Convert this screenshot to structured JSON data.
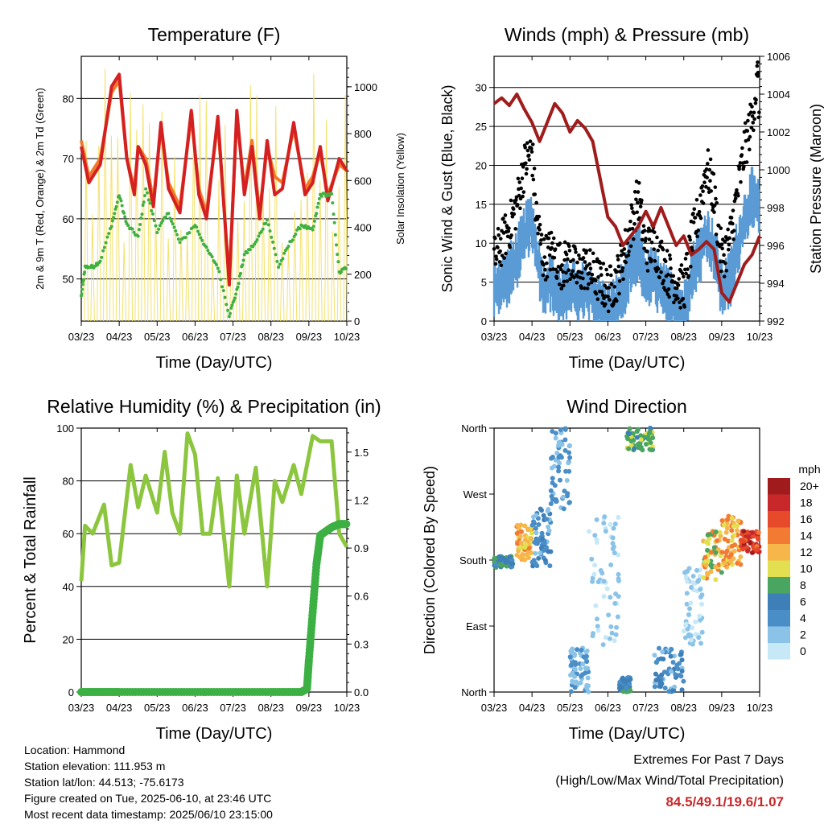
{
  "chart_data": [
    {
      "type": "line",
      "title": "Temperature (F)",
      "xlabel": "Time (Day/UTC)",
      "ylabel": "2m & 9m T (Red, Orange) & 2m Td (Green)",
      "y2label": "Solar Insolation (Yellow)",
      "x_ticks": [
        "03/23",
        "04/23",
        "05/23",
        "06/23",
        "07/23",
        "08/23",
        "09/23",
        "10/23"
      ],
      "y_ticks": [
        50,
        60,
        70,
        80
      ],
      "y2_ticks": [
        0,
        200,
        400,
        600,
        800,
        1000
      ],
      "ylim": [
        43,
        87
      ],
      "y2lim": [
        0,
        1130
      ],
      "grid": true,
      "series": [
        {
          "color": "#d42020",
          "x": [
            0,
            0.2,
            0.5,
            0.8,
            1.0,
            1.2,
            1.4,
            1.5,
            1.7,
            1.9,
            2.1,
            2.3,
            2.6,
            2.9,
            3.1,
            3.3,
            3.6,
            3.9,
            4.1,
            4.3,
            4.5,
            4.7,
            4.9,
            5.1,
            5.3,
            5.6,
            5.9,
            6.1,
            6.3,
            6.5,
            6.8,
            7.0
          ],
          "values": [
            72,
            66,
            69,
            82,
            84,
            70,
            64,
            72,
            69,
            62,
            76,
            65,
            61,
            78,
            64,
            60,
            77,
            49,
            78,
            64,
            72,
            60,
            73,
            64,
            65,
            76,
            64,
            66,
            72,
            63,
            70,
            68
          ]
        },
        {
          "color": "#f07a2a",
          "x": [
            0,
            0.2,
            0.5,
            0.8,
            1.0,
            1.2,
            1.4,
            1.5,
            1.7,
            1.9,
            2.1,
            2.3,
            2.6,
            2.9,
            3.1,
            3.3,
            3.6,
            3.9,
            4.1,
            4.3,
            4.5,
            4.7,
            4.9,
            5.1,
            5.3,
            5.6,
            5.9,
            6.1,
            6.3,
            6.5,
            6.8,
            7.0
          ],
          "values": [
            73,
            67,
            70,
            81,
            83,
            70,
            65,
            72,
            70,
            63,
            75,
            66,
            62,
            77,
            65,
            61,
            76,
            50,
            77,
            65,
            73,
            61,
            72,
            67,
            66,
            75,
            65,
            67,
            71,
            64,
            69,
            68
          ]
        },
        {
          "color": "#40b040",
          "x": [
            0,
            0.1,
            0.3,
            0.5,
            0.8,
            1.0,
            1.2,
            1.5,
            1.7,
            2.0,
            2.3,
            2.6,
            3.0,
            3.3,
            3.6,
            3.9,
            4.1,
            4.3,
            4.6,
            4.9,
            5.2,
            5.5,
            5.8,
            6.1,
            6.3,
            6.6,
            6.8,
            7.0
          ],
          "values": [
            47,
            52,
            52,
            53,
            59,
            64,
            59,
            57,
            65,
            58,
            61,
            56,
            59,
            55,
            52,
            44,
            48,
            54,
            56,
            60,
            52,
            56,
            59,
            58,
            64,
            64,
            51,
            52
          ]
        },
        {
          "color": "#f5e06a",
          "x": [],
          "values": []
        }
      ]
    },
    {
      "type": "scatter",
      "title": "Winds (mph) & Pressure (mb)",
      "xlabel": "Time (Day/UTC)",
      "ylabel": "Sonic Wind & Gust (Blue, Black)",
      "y2label": "Station Pressure (Maroon)",
      "x_ticks": [
        "03/23",
        "04/23",
        "05/23",
        "06/23",
        "07/23",
        "08/23",
        "09/23",
        "10/23"
      ],
      "y_ticks": [
        0,
        5,
        10,
        15,
        20,
        25,
        30
      ],
      "y2_ticks": [
        992,
        994,
        996,
        998,
        1000,
        1002,
        1004,
        1006
      ],
      "ylim": [
        0,
        34
      ],
      "y2lim": [
        992,
        1006
      ],
      "grid": true,
      "series": [
        {
          "color": "#5b9bd5",
          "x": [
            0,
            0.2,
            0.4,
            0.6,
            0.8,
            1.0,
            1.1,
            1.3,
            1.5,
            1.8,
            2.0,
            2.2,
            2.4,
            2.6,
            2.8,
            3.0,
            3.2,
            3.4,
            3.6,
            3.8,
            4.0,
            4.2,
            4.4,
            4.6,
            4.8,
            5.0,
            5.2,
            5.4,
            5.6,
            5.8,
            6.0,
            6.2,
            6.4,
            6.6,
            6.8,
            7.0
          ],
          "values": [
            5,
            6,
            7,
            9,
            12,
            14,
            10,
            5,
            6,
            4,
            6,
            4,
            5,
            4,
            3,
            2,
            3,
            5,
            8,
            10,
            6,
            7,
            5,
            4,
            3,
            2,
            7,
            9,
            12,
            10,
            5,
            6,
            10,
            14,
            17,
            15
          ]
        },
        {
          "color": "#000000",
          "x": [
            0,
            0.2,
            0.4,
            0.6,
            0.8,
            1.0,
            1.1,
            1.3,
            1.5,
            1.8,
            2.0,
            2.2,
            2.4,
            2.6,
            2.8,
            3.0,
            3.2,
            3.4,
            3.6,
            3.8,
            4.0,
            4.2,
            4.4,
            4.6,
            4.8,
            5.0,
            5.2,
            5.4,
            5.6,
            5.8,
            6.0,
            6.2,
            6.4,
            6.6,
            6.8,
            6.95,
            7.0
          ],
          "values": [
            8,
            10,
            12,
            15,
            20,
            22,
            14,
            8,
            9,
            7,
            8,
            6,
            7,
            6,
            5,
            4,
            5,
            8,
            12,
            16,
            9,
            10,
            8,
            6,
            5,
            4,
            10,
            14,
            20,
            16,
            8,
            10,
            16,
            22,
            26,
            31.5,
            25
          ]
        },
        {
          "color": "#a01c1c",
          "x": [
            0,
            0.2,
            0.4,
            0.6,
            0.8,
            1.0,
            1.2,
            1.4,
            1.6,
            1.8,
            2.0,
            2.2,
            2.4,
            2.6,
            2.8,
            3.0,
            3.2,
            3.4,
            3.6,
            3.8,
            4.0,
            4.2,
            4.4,
            4.6,
            4.8,
            5.0,
            5.2,
            5.4,
            5.6,
            5.8,
            6.0,
            6.2,
            6.4,
            6.6,
            6.8,
            7.0
          ],
          "values": [
            1003.5,
            1003.8,
            1003.4,
            1004,
            1003.2,
            1002.5,
            1001.5,
            1002.5,
            1003.5,
            1003,
            1002,
            1002.6,
            1002.2,
            1001.5,
            999.5,
            997.5,
            997,
            996,
            996.5,
            997,
            997.8,
            997,
            998,
            997,
            996,
            996.5,
            995.5,
            995.8,
            996.2,
            995.8,
            993.5,
            993,
            994,
            995,
            995.5,
            996.5
          ]
        }
      ]
    },
    {
      "type": "line",
      "title": "Relative Humidity (%) & Precipitation (in)",
      "xlabel": "Time (Day/UTC)",
      "ylabel": "Percent & Total Rainfall",
      "x_ticks": [
        "03/23",
        "04/23",
        "05/23",
        "06/23",
        "07/23",
        "08/23",
        "09/23",
        "10/23"
      ],
      "y_ticks": [
        0,
        20,
        40,
        60,
        80,
        100
      ],
      "y2_ticks": [
        "0.0",
        "0.3",
        "0.6",
        "0.9",
        "1.2",
        "1.5"
      ],
      "ylim": [
        0,
        100
      ],
      "y2lim": [
        0,
        1.65
      ],
      "grid": true,
      "series": [
        {
          "color": "#8cc63f",
          "x": [
            0,
            0.1,
            0.3,
            0.6,
            0.8,
            1.0,
            1.3,
            1.5,
            1.7,
            2.0,
            2.2,
            2.4,
            2.6,
            2.8,
            3.0,
            3.2,
            3.4,
            3.6,
            3.9,
            4.1,
            4.3,
            4.6,
            4.9,
            5.1,
            5.3,
            5.6,
            5.8,
            6.1,
            6.3,
            6.6,
            6.8,
            7.0
          ],
          "values": [
            42,
            63,
            60,
            71,
            48,
            49,
            86,
            70,
            82,
            68,
            91,
            68,
            60,
            98,
            90,
            60,
            60,
            81,
            40,
            82,
            60,
            85,
            40,
            80,
            72,
            86,
            75,
            97,
            95,
            95,
            60,
            55
          ]
        },
        {
          "color": "#3cb043",
          "x": [
            0,
            0.5,
            1,
            2,
            3,
            4,
            5,
            5.8,
            5.95,
            6.0,
            6.1,
            6.2,
            6.3,
            6.6,
            6.8,
            7.0
          ],
          "values": [
            0,
            0,
            0,
            0,
            0,
            0,
            0,
            0,
            0.02,
            0.2,
            0.5,
            0.8,
            0.98,
            1.03,
            1.05,
            1.05
          ]
        }
      ]
    },
    {
      "type": "scatter",
      "title": "Wind Direction",
      "xlabel": "Time (Day/UTC)",
      "ylabel": "Direction (Colored By Speed)",
      "x_ticks": [
        "03/23",
        "04/23",
        "05/23",
        "06/23",
        "07/23",
        "08/23",
        "09/23",
        "10/23"
      ],
      "y_ticks": [
        "North",
        "East",
        "South",
        "West",
        "North"
      ],
      "ylim": [
        0,
        360
      ],
      "legend": {
        "title": "mph",
        "labels": [
          "0",
          "2",
          "4",
          "6",
          "8",
          "10",
          "12",
          "14",
          "16",
          "18",
          "20+"
        ],
        "colors": [
          "#c6e8f7",
          "#8bc3e8",
          "#4a8ec8",
          "#3e7fb8",
          "#4aa560",
          "#e2e050",
          "#f6b64a",
          "#f27a32",
          "#e64a2a",
          "#c8282a",
          "#a01c1c"
        ]
      },
      "clusters": [
        {
          "x": [
            0,
            0.5
          ],
          "dir": [
            170,
            185
          ],
          "speed": [
            4,
            8
          ]
        },
        {
          "x": [
            0.6,
            1.0
          ],
          "dir": [
            180,
            230
          ],
          "speed": [
            10,
            14
          ]
        },
        {
          "x": [
            1.0,
            1.5
          ],
          "dir": [
            170,
            250
          ],
          "speed": [
            2,
            6
          ]
        },
        {
          "x": [
            1.5,
            2.0
          ],
          "dir": [
            250,
            360
          ],
          "speed": [
            2,
            5
          ]
        },
        {
          "x": [
            2.0,
            2.5
          ],
          "dir": [
            0,
            60
          ],
          "speed": [
            1,
            4
          ]
        },
        {
          "x": [
            2.5,
            3.3
          ],
          "dir": [
            60,
            240
          ],
          "speed": [
            0,
            3
          ]
        },
        {
          "x": [
            3.3,
            3.6
          ],
          "dir": [
            0,
            20
          ],
          "speed": [
            4,
            8
          ]
        },
        {
          "x": [
            3.5,
            4.2
          ],
          "dir": [
            330,
            360
          ],
          "speed": [
            6,
            10
          ]
        },
        {
          "x": [
            4.2,
            5.0
          ],
          "dir": [
            0,
            60
          ],
          "speed": [
            2,
            6
          ]
        },
        {
          "x": [
            5.0,
            5.5
          ],
          "dir": [
            60,
            170
          ],
          "speed": [
            0,
            3
          ]
        },
        {
          "x": [
            5.5,
            6.0
          ],
          "dir": [
            150,
            220
          ],
          "speed": [
            8,
            14
          ]
        },
        {
          "x": [
            6.0,
            6.5
          ],
          "dir": [
            170,
            240
          ],
          "speed": [
            10,
            15
          ]
        },
        {
          "x": [
            6.5,
            7.0
          ],
          "dir": [
            190,
            220
          ],
          "speed": [
            14,
            20
          ]
        }
      ]
    }
  ],
  "info": {
    "location": "Location: Hammond",
    "elevation": "Station elevation: 111.953 m",
    "latlon": "Station lat/lon: 44.513; -75.6173",
    "created": "Figure created on Tue, 2025-06-10, at 23:46 UTC",
    "recent": "Most recent data timestamp: 2025/06/10 23:15:00"
  },
  "extremes": {
    "title": "Extremes For Past 7 Days",
    "subtitle": "(High/Low/Max Wind/Total Precipitation)",
    "values": "84.5/49.1/19.6/1.07",
    "values_color": "#c8282a"
  }
}
